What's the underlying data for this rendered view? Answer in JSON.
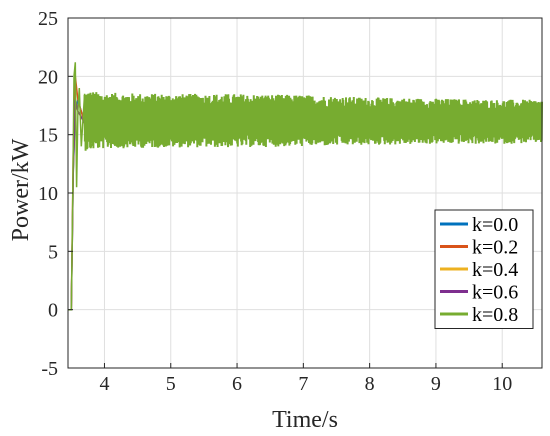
{
  "chart_data": {
    "type": "line",
    "xlabel": "Time/s",
    "ylabel": "Power/kW",
    "xlim": [
      3.45,
      10.6
    ],
    "ylim": [
      -5,
      25
    ],
    "xticks": [
      "4",
      "5",
      "6",
      "7",
      "8",
      "9",
      "10"
    ],
    "yticks": [
      "-5",
      "0",
      "5",
      "10",
      "15",
      "20",
      "25"
    ],
    "grid": true,
    "legend_position": "bottom-right",
    "series": [
      {
        "name": "k=0.0",
        "color": "#0072BD",
        "x": [
          3.45,
          3.5,
          3.53,
          3.56,
          3.6,
          3.7,
          4.0,
          5.0,
          6.0,
          7.0,
          8.0,
          9.0,
          10.0,
          10.6
        ],
        "y": [
          0,
          0,
          12,
          17,
          18,
          16,
          16,
          16,
          16,
          16,
          16,
          16,
          16,
          16
        ]
      },
      {
        "name": "k=0.2",
        "color": "#D95319",
        "x": [
          3.45,
          3.5,
          3.53,
          3.56,
          3.6,
          3.7,
          4.0,
          5.0,
          6.0,
          7.0,
          8.0,
          9.0,
          10.0,
          10.6
        ],
        "y": [
          0,
          0,
          14,
          20,
          18,
          16,
          16,
          16,
          16,
          16,
          16,
          16,
          16,
          16
        ]
      },
      {
        "name": "k=0.4",
        "color": "#EDB120",
        "x": [
          3.45,
          3.5,
          3.53,
          3.56,
          3.6,
          3.7,
          4.0,
          5.0,
          6.0,
          7.0,
          8.0,
          9.0,
          10.0,
          10.6
        ],
        "y": [
          0,
          0,
          12,
          18,
          17,
          16,
          16,
          16,
          16,
          16,
          16,
          16,
          16,
          16
        ]
      },
      {
        "name": "k=0.6",
        "color": "#7E2F8E",
        "x": [
          3.45,
          3.5,
          3.53,
          3.56,
          3.6,
          3.7,
          4.0,
          5.0,
          6.0,
          7.0,
          8.0,
          9.0,
          10.0,
          10.6
        ],
        "y": [
          0,
          0,
          12,
          18,
          17,
          16,
          16,
          16,
          16,
          16,
          16,
          16,
          16,
          16
        ]
      },
      {
        "name": "k=0.8",
        "color": "#77AC30",
        "x": [
          3.45,
          3.5,
          3.52,
          3.54,
          3.56,
          3.58,
          3.6,
          3.62,
          3.65,
          3.7,
          3.8,
          4.0,
          5.0,
          6.0,
          7.0,
          8.0,
          9.0,
          10.0,
          10.6
        ],
        "y": [
          0,
          0,
          8.5,
          20,
          21.2,
          10.5,
          17,
          19,
          14,
          18.5,
          14,
          16,
          16,
          16,
          16,
          15.8,
          15.8,
          15.8,
          15.8
        ],
        "band_x": [
          3.7,
          4.0,
          5.0,
          6.0,
          7.0,
          8.0,
          9.0,
          10.0,
          10.6
        ],
        "band_upper": [
          18.8,
          18.6,
          18.5,
          18.5,
          18.4,
          18.2,
          18.1,
          18.0,
          18.0
        ],
        "band_lower": [
          13.6,
          13.8,
          13.9,
          13.9,
          14.0,
          14.1,
          14.2,
          14.2,
          14.3
        ]
      }
    ]
  }
}
